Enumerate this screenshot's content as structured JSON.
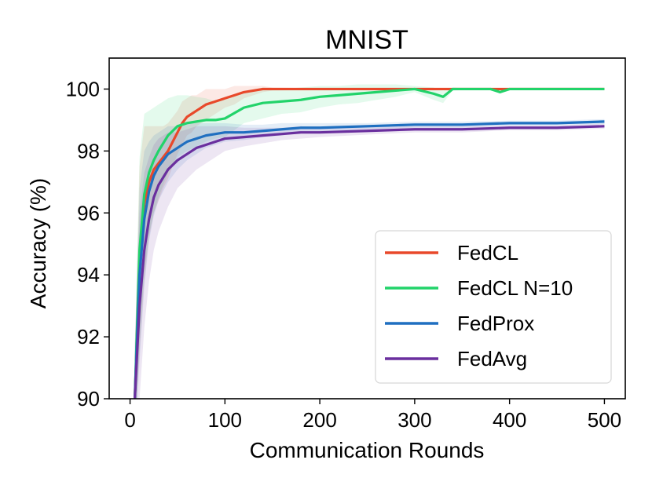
{
  "chart_data": {
    "type": "line",
    "title": "MNIST",
    "xlabel": "Communication Rounds",
    "ylabel": "Accuracy (%)",
    "xlim": [
      -22,
      522
    ],
    "ylim": [
      90,
      101
    ],
    "xticks": [
      0,
      100,
      200,
      300,
      400,
      500
    ],
    "yticks": [
      90,
      92,
      94,
      96,
      98,
      100
    ],
    "grid": false,
    "legend_position": "lower-right",
    "series": [
      {
        "name": "FedCL",
        "color": "#e8482a",
        "x": [
          5,
          10,
          15,
          20,
          25,
          30,
          35,
          40,
          45,
          50,
          55,
          60,
          65,
          70,
          75,
          80,
          90,
          100,
          110,
          120,
          130,
          140,
          150,
          200,
          300,
          400,
          500
        ],
        "y": [
          90.0,
          94.5,
          96.3,
          97.0,
          97.4,
          97.6,
          97.8,
          98.0,
          98.3,
          98.6,
          98.9,
          99.1,
          99.2,
          99.3,
          99.4,
          99.5,
          99.6,
          99.7,
          99.8,
          99.9,
          99.95,
          100.0,
          100.0,
          100.0,
          100.0,
          100.0,
          100.0
        ],
        "band": [
          1.2,
          3.0,
          2.5,
          1.8,
          1.4,
          1.2,
          1.0,
          0.9,
          0.8,
          0.7,
          0.7,
          0.6,
          0.6,
          0.5,
          0.5,
          0.5,
          0.4,
          0.3,
          0.3,
          0.2,
          0.15,
          0.1,
          0.05,
          0.02,
          0.0,
          0.0,
          0.0
        ]
      },
      {
        "name": "FedCL N=10",
        "color": "#22d36a",
        "x": [
          5,
          10,
          15,
          20,
          25,
          30,
          40,
          50,
          60,
          70,
          80,
          90,
          100,
          120,
          140,
          160,
          180,
          200,
          220,
          240,
          260,
          280,
          300,
          320,
          330,
          340,
          360,
          380,
          390,
          400,
          500
        ],
        "y": [
          90.0,
          94.8,
          96.6,
          97.3,
          97.7,
          98.0,
          98.5,
          98.8,
          98.9,
          98.95,
          99.0,
          99.0,
          99.05,
          99.4,
          99.55,
          99.6,
          99.65,
          99.75,
          99.8,
          99.85,
          99.9,
          99.95,
          100.0,
          99.85,
          99.75,
          100.0,
          100.0,
          100.0,
          99.9,
          100.0,
          100.0
        ],
        "band": [
          1.5,
          3.0,
          2.6,
          2.0,
          1.7,
          1.5,
          1.2,
          1.0,
          0.9,
          0.8,
          0.7,
          0.6,
          0.6,
          0.5,
          0.5,
          0.4,
          0.4,
          0.35,
          0.3,
          0.3,
          0.25,
          0.2,
          0.1,
          0.2,
          0.2,
          0.05,
          0.02,
          0.0,
          0.05,
          0.0,
          0.0
        ]
      },
      {
        "name": "FedProx",
        "color": "#1f6fc0",
        "x": [
          5,
          10,
          15,
          20,
          25,
          30,
          40,
          50,
          60,
          70,
          80,
          90,
          100,
          120,
          140,
          160,
          180,
          200,
          250,
          300,
          350,
          400,
          450,
          500
        ],
        "y": [
          90.0,
          94.0,
          95.8,
          96.7,
          97.2,
          97.5,
          97.9,
          98.1,
          98.3,
          98.4,
          98.5,
          98.55,
          98.6,
          98.6,
          98.65,
          98.7,
          98.75,
          98.75,
          98.8,
          98.85,
          98.85,
          98.9,
          98.9,
          98.95
        ],
        "band": [
          1.5,
          2.8,
          2.2,
          1.6,
          1.3,
          1.1,
          0.9,
          0.7,
          0.6,
          0.5,
          0.4,
          0.35,
          0.3,
          0.25,
          0.2,
          0.2,
          0.15,
          0.15,
          0.1,
          0.1,
          0.1,
          0.08,
          0.08,
          0.08
        ]
      },
      {
        "name": "FedAvg",
        "color": "#6a2f9e",
        "x": [
          5,
          10,
          15,
          20,
          25,
          30,
          40,
          50,
          60,
          70,
          80,
          90,
          100,
          120,
          140,
          160,
          180,
          200,
          250,
          300,
          350,
          400,
          450,
          500
        ],
        "y": [
          90.0,
          93.0,
          94.8,
          95.8,
          96.5,
          96.9,
          97.4,
          97.7,
          97.9,
          98.1,
          98.2,
          98.3,
          98.4,
          98.45,
          98.5,
          98.55,
          98.6,
          98.6,
          98.65,
          98.7,
          98.7,
          98.75,
          98.75,
          98.8
        ],
        "band": [
          1.8,
          3.0,
          2.5,
          2.0,
          1.7,
          1.5,
          1.2,
          0.9,
          0.8,
          0.7,
          0.6,
          0.5,
          0.4,
          0.3,
          0.25,
          0.2,
          0.2,
          0.15,
          0.12,
          0.1,
          0.1,
          0.08,
          0.08,
          0.08
        ]
      }
    ]
  }
}
